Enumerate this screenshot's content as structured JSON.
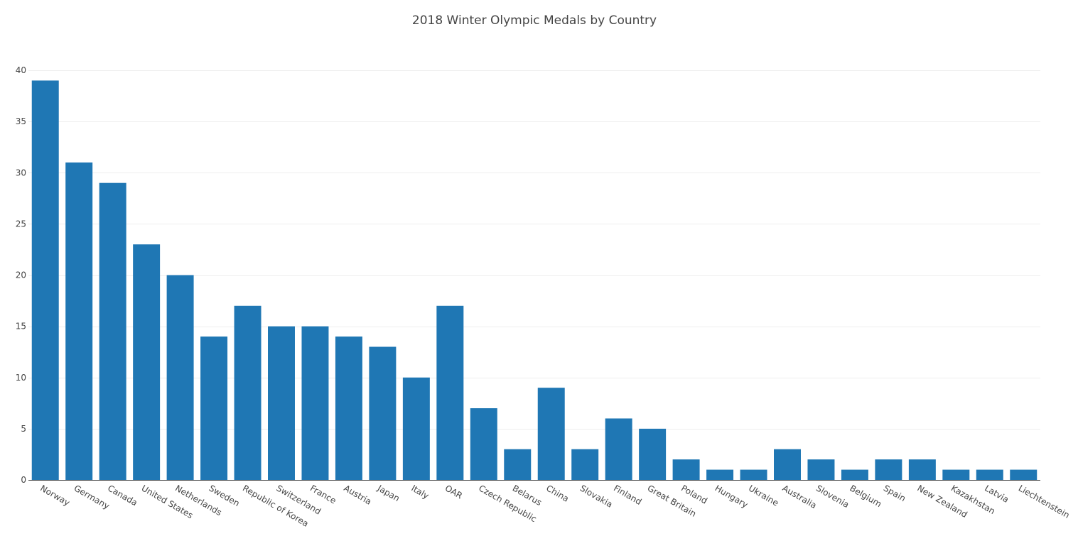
{
  "chart_data": {
    "type": "bar",
    "title": "2018 Winter Olympic Medals by Country",
    "xlabel": "",
    "ylabel": "",
    "categories": [
      "Norway",
      "Germany",
      "Canada",
      "United States",
      "Netherlands",
      "Sweden",
      "Republic of Korea",
      "Switzerland",
      "France",
      "Austria",
      "Japan",
      "Italy",
      "OAR",
      "Czech Republic",
      "Belarus",
      "China",
      "Slovakia",
      "Finland",
      "Great Britain",
      "Poland",
      "Hungary",
      "Ukraine",
      "Australia",
      "Slovenia",
      "Belgium",
      "Spain",
      "New Zealand",
      "Kazakhstan",
      "Latvia",
      "Liechtenstein"
    ],
    "values": [
      39,
      31,
      29,
      23,
      20,
      14,
      17,
      15,
      15,
      14,
      13,
      10,
      17,
      7,
      3,
      9,
      3,
      6,
      5,
      2,
      1,
      1,
      3,
      2,
      1,
      2,
      2,
      1,
      1,
      1
    ],
    "ylim": [
      0,
      40
    ],
    "yticks": [
      0,
      5,
      10,
      15,
      20,
      25,
      30,
      35,
      40
    ],
    "grid": true,
    "legend": "none",
    "bar_color": "#1f77b4"
  }
}
